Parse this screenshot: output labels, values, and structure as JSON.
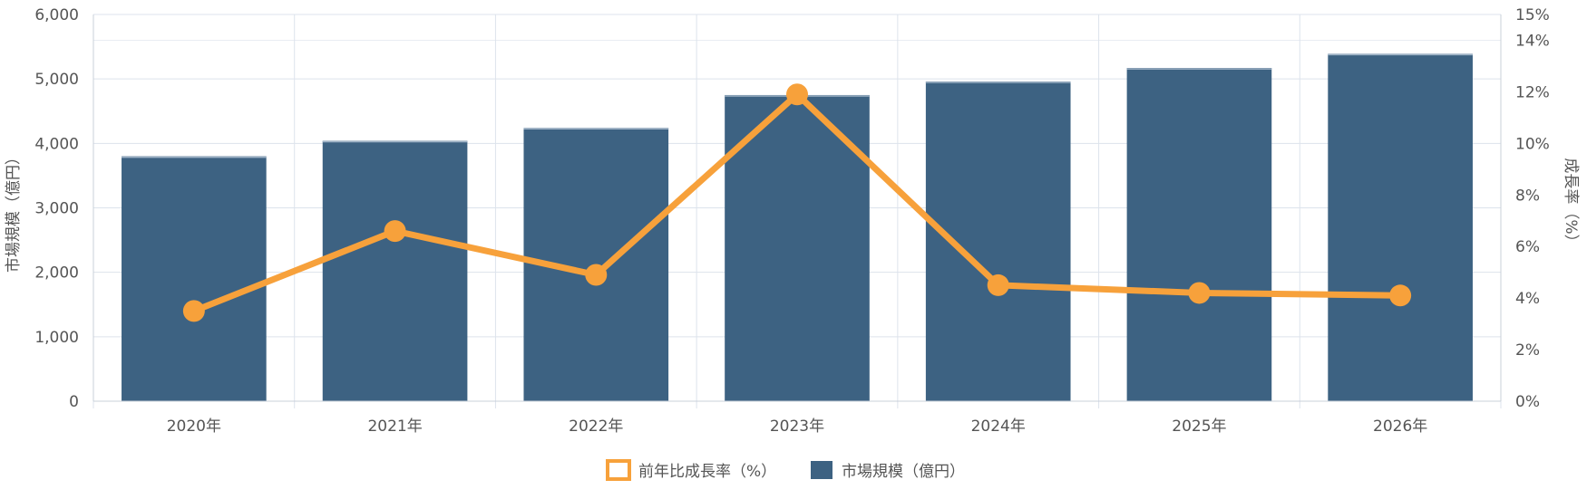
{
  "colors": {
    "bar": "#3d6282",
    "line": "#f7a13b",
    "grid": "#dde3ec",
    "axis_text": "#555555"
  },
  "legend": {
    "line_label": "前年比成長率（%）",
    "bar_label": "市場規模（億円）"
  },
  "chart_data": {
    "type": "bar",
    "categories": [
      "2020年",
      "2021年",
      "2022年",
      "2023年",
      "2024年",
      "2025年",
      "2026年"
    ],
    "series": [
      {
        "name": "市場規模（億円）",
        "type": "bar",
        "axis": "left",
        "values": [
          3800,
          4040,
          4240,
          4750,
          4960,
          5170,
          5390
        ]
      },
      {
        "name": "前年比成長率（%）",
        "type": "line",
        "axis": "right",
        "values": [
          3.5,
          6.6,
          4.9,
          11.9,
          4.5,
          4.2,
          4.1
        ]
      }
    ],
    "ylabel": "市場規模（億円）",
    "y2label": "成長率（%）",
    "ylim": [
      0,
      6000
    ],
    "y2lim": [
      0,
      15
    ],
    "yticks": [
      "0",
      "1,000",
      "2,000",
      "3,000",
      "4,000",
      "5,000",
      "6,000"
    ],
    "y2ticks": [
      "0%",
      "2%",
      "4%",
      "6%",
      "8%",
      "10%",
      "12%",
      "14%",
      "15%"
    ],
    "y2tick_values": [
      0,
      2,
      4,
      6,
      8,
      10,
      12,
      14,
      15
    ],
    "grid": true,
    "legend_position": "bottom"
  }
}
